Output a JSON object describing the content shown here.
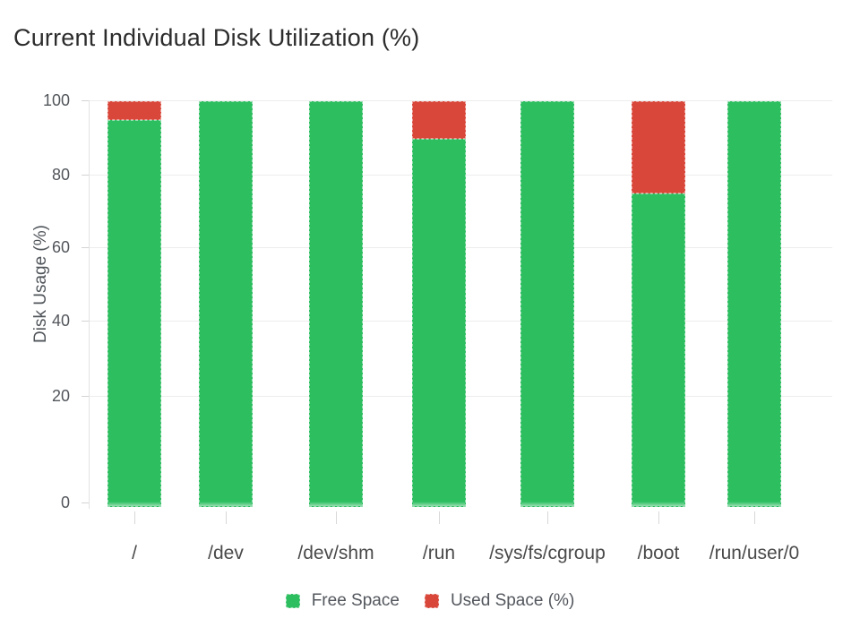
{
  "chart_data": {
    "type": "bar",
    "stacked": true,
    "title": "Current Individual Disk Utilization (%)",
    "ylabel": "Disk Usage (%)",
    "xlabel": "",
    "categories": [
      "/",
      "/dev",
      "/dev/shm",
      "/run",
      "/sys/fs/cgroup",
      "/boot",
      "/run/user/0"
    ],
    "series": [
      {
        "name": "Free Space",
        "color": "#2dbe60",
        "values": [
          95,
          100,
          100,
          90,
          100,
          75,
          100
        ]
      },
      {
        "name": "Used Space (%)",
        "color": "#d9473a",
        "values": [
          5,
          0,
          0,
          10,
          0,
          25,
          0
        ]
      }
    ],
    "yticks": [
      0,
      20,
      40,
      60,
      80,
      100
    ],
    "ylim": [
      0,
      100
    ],
    "grid": true,
    "legend_position": "bottom",
    "background_color": "#ffffff",
    "grid_color": "#ededed"
  }
}
